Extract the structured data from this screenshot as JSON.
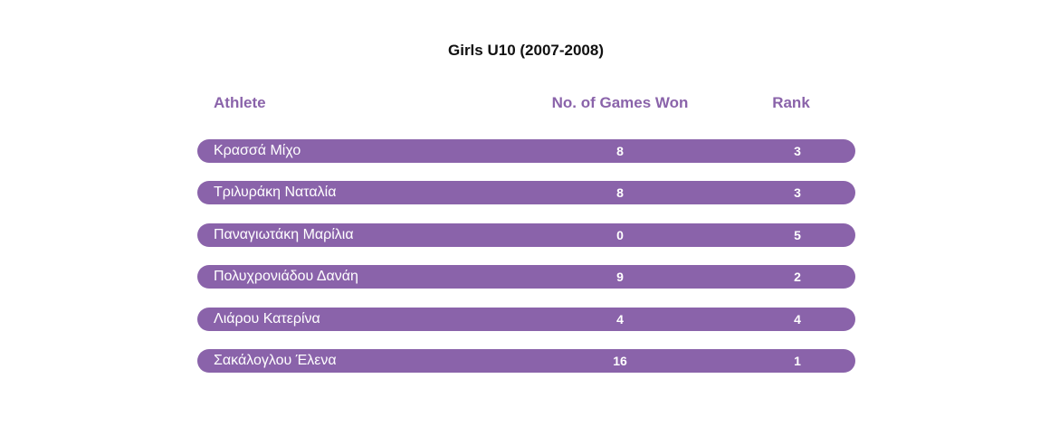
{
  "title": "Girls U10 (2007-2008)",
  "headers": {
    "athlete": "Athlete",
    "games_won": "No. of Games Won",
    "rank": "Rank"
  },
  "colors": {
    "accent": "#8a63aa",
    "row_text": "#ffffff"
  },
  "rows": [
    {
      "athlete": "Κρασσά Μίχο",
      "games_won": "8",
      "rank": "3"
    },
    {
      "athlete": "Τριλυράκη Ναταλία",
      "games_won": "8",
      "rank": "3"
    },
    {
      "athlete": "Παναγιωτάκη Μαρίλια",
      "games_won": "0",
      "rank": "5"
    },
    {
      "athlete": "Πολυχρονιάδου Δανάη",
      "games_won": "9",
      "rank": "2"
    },
    {
      "athlete": "Λιάρου Κατερίνα",
      "games_won": "4",
      "rank": "4"
    },
    {
      "athlete": "Σακάλογλου Έλενα",
      "games_won": "16",
      "rank": "1"
    }
  ]
}
